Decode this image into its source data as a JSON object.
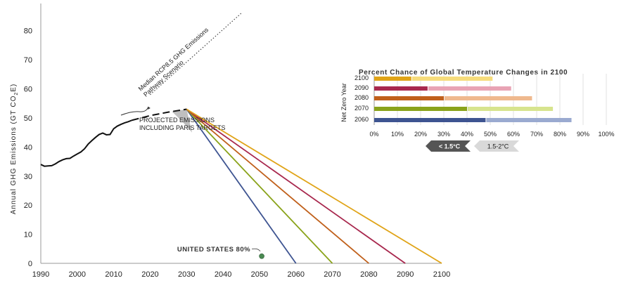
{
  "chart_data": [
    {
      "type": "line",
      "ylabel_parts": [
        "Annual GHG Emissions (GT CO",
        "2",
        "E)"
      ],
      "ylim": [
        0,
        85
      ],
      "yticks": [
        0,
        10,
        20,
        30,
        40,
        50,
        60,
        70,
        80
      ],
      "xlim": [
        1990,
        2100
      ],
      "xticks": [
        1990,
        2000,
        2010,
        2020,
        2030,
        2040,
        2050,
        2060,
        2070,
        2080,
        2090,
        2100
      ],
      "historical": {
        "x": [
          1990,
          1991,
          1992,
          1993,
          1994,
          1995,
          1996,
          1997,
          1998,
          1999,
          2000,
          2001,
          2002,
          2003,
          2004,
          2005,
          2006,
          2007,
          2008,
          2009,
          2010,
          2011,
          2012,
          2013,
          2014,
          2015
        ],
        "y": [
          34.0,
          33.4,
          33.5,
          33.6,
          34.2,
          35.0,
          35.6,
          36.0,
          36.1,
          36.9,
          37.6,
          38.3,
          39.4,
          41.0,
          42.2,
          43.3,
          44.3,
          44.8,
          44.2,
          44.3,
          46.3,
          47.2,
          47.8,
          48.3,
          48.7,
          49.2
        ]
      },
      "projected": {
        "x": [
          2015,
          2020,
          2025,
          2030
        ],
        "y": [
          49.2,
          50.8,
          52.0,
          53.0
        ],
        "label_lines": [
          "PROJECTED EMISSIONS",
          "INCLUDING PARIS TARGETS"
        ]
      },
      "rcp85": {
        "x": [
          2020,
          2045
        ],
        "y": [
          58.0,
          86.0
        ],
        "label_lines": [
          "Median RCP8.5 GHG Emissions",
          "Pathway Scenario"
        ]
      },
      "pathways": [
        {
          "net_zero_year": 2060,
          "x": [
            2030,
            2060
          ],
          "y": [
            53.0,
            0
          ],
          "color": "#3e5491"
        },
        {
          "net_zero_year": 2070,
          "x": [
            2030,
            2070
          ],
          "y": [
            53.0,
            0
          ],
          "color": "#8aa31a"
        },
        {
          "net_zero_year": 2080,
          "x": [
            2030,
            2080
          ],
          "y": [
            53.0,
            0
          ],
          "color": "#c0601b"
        },
        {
          "net_zero_year": 2090,
          "x": [
            2030,
            2090
          ],
          "y": [
            53.0,
            0
          ],
          "color": "#a8284e"
        },
        {
          "net_zero_year": 2100,
          "x": [
            2030,
            2100
          ],
          "y": [
            53.0,
            0
          ],
          "color": "#e0a418"
        }
      ],
      "annotation": {
        "text": "UNITED STATES 80%",
        "x": 2051,
        "y": 1.5
      }
    },
    {
      "type": "bar",
      "stacked": true,
      "orientation": "horizontal",
      "title": "Percent Chance of Global Temperature Changes in 2100",
      "ylabel": "Net Zero Year",
      "categories": [
        "2100",
        "2090",
        "2080",
        "2070",
        "2060"
      ],
      "xlim": [
        0,
        100
      ],
      "xticks": [
        "0%",
        "10%",
        "20%",
        "30%",
        "40%",
        "50%",
        "60%",
        "70%",
        "80%",
        "90%",
        "100%"
      ],
      "series": [
        {
          "name": "< 1.5°C",
          "values": [
            16,
            23,
            30,
            40,
            48
          ]
        },
        {
          "name": "1.5-2°C",
          "values": [
            35,
            36,
            38,
            37,
            37
          ]
        }
      ],
      "colors_dark": [
        "#e0a418",
        "#a8284e",
        "#c0601b",
        "#8aa31a",
        "#3e5491"
      ],
      "colors_light": [
        "#f6dc7c",
        "#e8a3b4",
        "#efb98e",
        "#d7e48e",
        "#9aaad0"
      ],
      "legend_placement": "bottom",
      "legend_colors": [
        "#555555",
        "#d9d9d9"
      ]
    }
  ]
}
